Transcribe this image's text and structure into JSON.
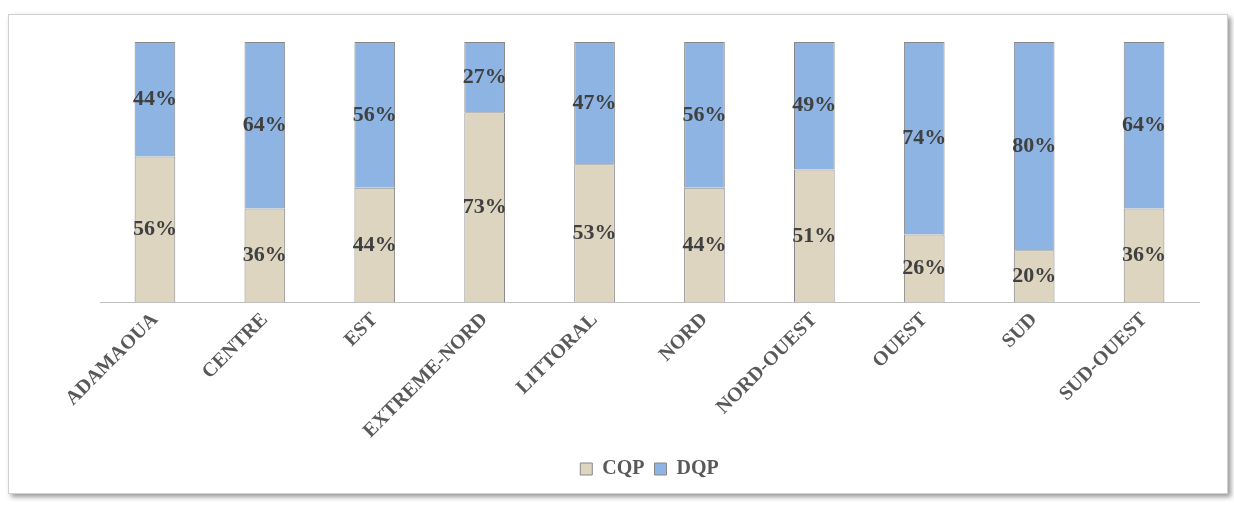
{
  "chart_data": {
    "type": "bar",
    "stacked": true,
    "categories": [
      "ADAMAOUA",
      "CENTRE",
      "EST",
      "EXTREME-NORD",
      "LITTORAL",
      "NORD",
      "NORD-OUEST",
      "OUEST",
      "SUD",
      "SUD-OUEST"
    ],
    "series": [
      {
        "name": "CQP",
        "color": "#ddd5c0",
        "values": [
          56,
          36,
          44,
          73,
          53,
          44,
          51,
          26,
          20,
          36
        ],
        "value_labels": [
          "56%",
          "36%",
          "44%",
          "73%",
          "53%",
          "44%",
          "51%",
          "26%",
          "20%",
          "36%"
        ]
      },
      {
        "name": "DQP",
        "color": "#8db4e2",
        "values": [
          44,
          64,
          56,
          27,
          47,
          56,
          49,
          74,
          80,
          64
        ],
        "value_labels": [
          "44%",
          "64%",
          "56%",
          "27%",
          "47%",
          "56%",
          "49%",
          "74%",
          "80%",
          "64%"
        ]
      }
    ],
    "ylim": [
      0,
      100
    ],
    "tick_labels": "x",
    "grid": false,
    "legend": "bottom"
  }
}
